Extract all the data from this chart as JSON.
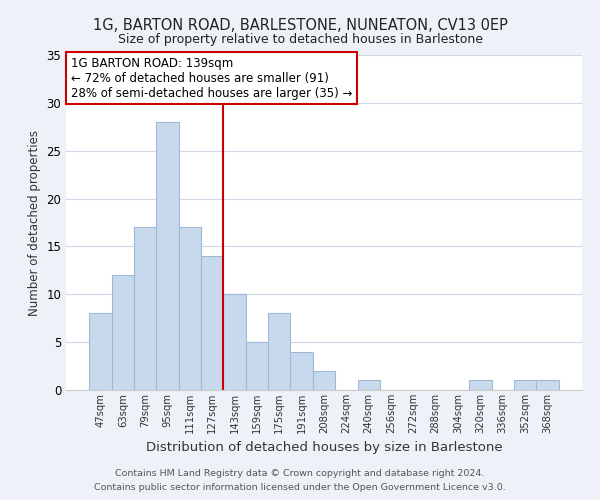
{
  "title1": "1G, BARTON ROAD, BARLESTONE, NUNEATON, CV13 0EP",
  "title2": "Size of property relative to detached houses in Barlestone",
  "xlabel": "Distribution of detached houses by size in Barlestone",
  "ylabel": "Number of detached properties",
  "bar_labels": [
    "47sqm",
    "63sqm",
    "79sqm",
    "95sqm",
    "111sqm",
    "127sqm",
    "143sqm",
    "159sqm",
    "175sqm",
    "191sqm",
    "208sqm",
    "224sqm",
    "240sqm",
    "256sqm",
    "272sqm",
    "288sqm",
    "304sqm",
    "320sqm",
    "336sqm",
    "352sqm",
    "368sqm"
  ],
  "bar_values": [
    8,
    12,
    17,
    28,
    17,
    14,
    10,
    5,
    8,
    4,
    2,
    0,
    1,
    0,
    0,
    0,
    0,
    1,
    0,
    1,
    1
  ],
  "bar_color": "#c9d9ed",
  "bar_edge_color": "#a0b8d8",
  "ylim": [
    0,
    35
  ],
  "yticks": [
    0,
    5,
    10,
    15,
    20,
    25,
    30,
    35
  ],
  "property_line_x": 6.0,
  "annotation_title": "1G BARTON ROAD: 139sqm",
  "annotation_line1": "← 72% of detached houses are smaller (91)",
  "annotation_line2": "28% of semi-detached houses are larger (35) →",
  "footer1": "Contains HM Land Registry data © Crown copyright and database right 2024.",
  "footer2": "Contains public sector information licensed under the Open Government Licence v3.0.",
  "background_color": "#eef2f8",
  "plot_bg_color": "#ffffff",
  "grid_color": "#d0d8e8",
  "annotation_box_color": "#ffffff",
  "annotation_border_color": "#cc0000",
  "property_line_color": "#cc0000"
}
